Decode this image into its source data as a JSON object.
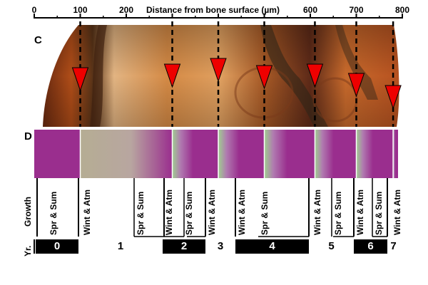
{
  "axis": {
    "title": "Distance from bone surface (µm)",
    "ticks": [
      "0",
      "100",
      "200",
      "300",
      "400",
      "500",
      "600",
      "700",
      "800"
    ]
  },
  "panels": {
    "c": "C",
    "d": "D"
  },
  "markers_um": [
    100,
    300,
    400,
    500,
    610,
    700,
    780
  ],
  "arrows_um": [
    100,
    300,
    400,
    500,
    610,
    700,
    780
  ],
  "band_edges_um": [
    100,
    300,
    400,
    500,
    610,
    700,
    780
  ],
  "growth": {
    "label": "Growth",
    "segments": [
      "Spr & Sum",
      "Wint & Atm",
      "Spr & Sum",
      "Wint & Atm",
      "Spr & Sum",
      "Wint & Atm",
      "Wint & Atm",
      "Spr & Sum",
      "Wint & Atm",
      "Spr & Sum",
      "Wint & Atm",
      "Spr & Sum",
      "Wint & Atm"
    ]
  },
  "years": {
    "label": "Yr.",
    "values": [
      "0",
      "1",
      "2",
      "3",
      "4",
      "5",
      "6",
      "7"
    ]
  },
  "colors": {
    "purple": "#9a2e8e",
    "green": "#9fcf8f",
    "tan": "#b5ad93",
    "arrow": "#ee0000"
  }
}
